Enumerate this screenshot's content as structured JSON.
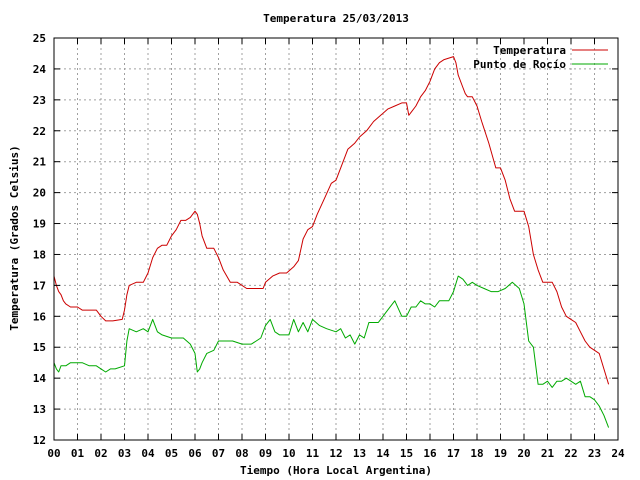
{
  "chart_data": {
    "type": "line",
    "title": "Temperatura 25/03/2013",
    "xlabel": "Tiempo (Hora Local Argentina)",
    "ylabel": "Temperatura (Grados Celsius)",
    "xlim": [
      0,
      24
    ],
    "ylim": [
      12,
      25
    ],
    "x_ticks": [
      "00",
      "01",
      "02",
      "03",
      "04",
      "05",
      "06",
      "07",
      "08",
      "09",
      "10",
      "11",
      "12",
      "13",
      "14",
      "15",
      "16",
      "17",
      "18",
      "19",
      "20",
      "21",
      "22",
      "23",
      "24"
    ],
    "y_ticks": [
      "12",
      "13",
      "14",
      "15",
      "16",
      "17",
      "18",
      "19",
      "20",
      "21",
      "22",
      "23",
      "24",
      "25"
    ],
    "grid": true,
    "legend_position": "top-right",
    "series": [
      {
        "name": "Temperatura",
        "color": "#cc0000",
        "x": [
          0,
          0.1,
          0.2,
          0.3,
          0.4,
          0.5,
          0.7,
          1.0,
          1.2,
          1.5,
          1.8,
          2.0,
          2.2,
          2.5,
          2.9,
          3.0,
          3.1,
          3.2,
          3.5,
          3.8,
          4.0,
          4.2,
          4.4,
          4.6,
          4.8,
          5.0,
          5.2,
          5.4,
          5.6,
          5.8,
          6.0,
          6.1,
          6.2,
          6.3,
          6.5,
          6.8,
          7.0,
          7.2,
          7.5,
          7.8,
          8.2,
          8.5,
          8.9,
          9.0,
          9.3,
          9.6,
          9.9,
          10.2,
          10.4,
          10.6,
          10.8,
          11.0,
          11.2,
          11.5,
          11.8,
          12.0,
          12.2,
          12.5,
          12.8,
          13.0,
          13.3,
          13.6,
          13.9,
          14.2,
          14.5,
          14.8,
          15.0,
          15.1,
          15.2,
          15.4,
          15.6,
          15.8,
          16.0,
          16.2,
          16.4,
          16.6,
          16.8,
          17.0,
          17.1,
          17.2,
          17.4,
          17.5,
          17.6,
          17.8,
          18.0,
          18.2,
          18.5,
          18.8,
          19.0,
          19.2,
          19.4,
          19.6,
          19.8,
          20.0,
          20.2,
          20.4,
          20.6,
          20.8,
          21.0,
          21.2,
          21.4,
          21.6,
          21.8,
          22.0,
          22.2,
          22.4,
          22.6,
          22.8,
          23.0,
          23.2,
          23.4,
          23.6
        ],
        "values": [
          17.3,
          17.0,
          16.8,
          16.7,
          16.5,
          16.4,
          16.3,
          16.3,
          16.2,
          16.2,
          16.2,
          16.0,
          15.85,
          15.85,
          15.9,
          16.2,
          16.7,
          17.0,
          17.1,
          17.1,
          17.4,
          17.9,
          18.2,
          18.3,
          18.3,
          18.6,
          18.8,
          19.1,
          19.1,
          19.2,
          19.4,
          19.3,
          19.0,
          18.6,
          18.2,
          18.2,
          17.9,
          17.5,
          17.1,
          17.1,
          16.9,
          16.9,
          16.9,
          17.1,
          17.3,
          17.4,
          17.4,
          17.6,
          17.8,
          18.5,
          18.8,
          18.9,
          19.3,
          19.8,
          20.3,
          20.4,
          20.8,
          21.4,
          21.6,
          21.8,
          22.0,
          22.3,
          22.5,
          22.7,
          22.8,
          22.9,
          22.9,
          22.5,
          22.6,
          22.8,
          23.1,
          23.3,
          23.6,
          24.0,
          24.2,
          24.3,
          24.35,
          24.4,
          24.2,
          23.8,
          23.4,
          23.2,
          23.1,
          23.1,
          22.8,
          22.3,
          21.6,
          20.8,
          20.8,
          20.4,
          19.8,
          19.4,
          19.4,
          19.4,
          18.9,
          18.0,
          17.5,
          17.1,
          17.1,
          17.1,
          16.8,
          16.3,
          16.0,
          15.9,
          15.8,
          15.5,
          15.2,
          15.0,
          14.9,
          14.8,
          14.3,
          13.8
        ]
      },
      {
        "name": "Punto de Rocío",
        "color": "#00aa00",
        "x": [
          0,
          0.1,
          0.2,
          0.3,
          0.5,
          0.7,
          1.0,
          1.2,
          1.5,
          1.8,
          2.0,
          2.2,
          2.4,
          2.6,
          3.0,
          3.1,
          3.2,
          3.5,
          3.8,
          4.0,
          4.2,
          4.4,
          4.6,
          5.0,
          5.2,
          5.5,
          5.8,
          6.0,
          6.1,
          6.2,
          6.3,
          6.5,
          6.8,
          7.0,
          7.3,
          7.6,
          8.0,
          8.4,
          8.8,
          9.0,
          9.2,
          9.4,
          9.6,
          9.8,
          10.0,
          10.2,
          10.4,
          10.6,
          10.8,
          11.0,
          11.3,
          11.6,
          12.0,
          12.2,
          12.4,
          12.6,
          12.8,
          13.0,
          13.2,
          13.4,
          13.6,
          13.8,
          14.0,
          14.2,
          14.5,
          14.8,
          15.0,
          15.2,
          15.4,
          15.6,
          15.8,
          16.0,
          16.2,
          16.4,
          16.6,
          16.8,
          17.0,
          17.2,
          17.4,
          17.6,
          17.8,
          18.0,
          18.3,
          18.6,
          18.9,
          19.2,
          19.5,
          19.8,
          20.0,
          20.2,
          20.4,
          20.6,
          20.8,
          21.0,
          21.2,
          21.4,
          21.6,
          21.8,
          22.0,
          22.2,
          22.4,
          22.6,
          22.8,
          23.0,
          23.2,
          23.4,
          23.6
        ],
        "values": [
          14.5,
          14.3,
          14.2,
          14.4,
          14.4,
          14.5,
          14.5,
          14.5,
          14.4,
          14.4,
          14.3,
          14.2,
          14.3,
          14.3,
          14.4,
          15.2,
          15.6,
          15.5,
          15.6,
          15.5,
          15.9,
          15.5,
          15.4,
          15.3,
          15.3,
          15.3,
          15.1,
          14.8,
          14.2,
          14.3,
          14.5,
          14.8,
          14.9,
          15.2,
          15.2,
          15.2,
          15.1,
          15.1,
          15.3,
          15.7,
          15.9,
          15.5,
          15.4,
          15.4,
          15.4,
          15.9,
          15.5,
          15.8,
          15.5,
          15.9,
          15.7,
          15.6,
          15.5,
          15.6,
          15.3,
          15.4,
          15.1,
          15.4,
          15.3,
          15.8,
          15.8,
          15.8,
          16.0,
          16.2,
          16.5,
          16.0,
          16.0,
          16.3,
          16.3,
          16.5,
          16.4,
          16.4,
          16.3,
          16.5,
          16.5,
          16.5,
          16.8,
          17.3,
          17.2,
          17.0,
          17.1,
          17.0,
          16.9,
          16.8,
          16.8,
          16.9,
          17.1,
          16.9,
          16.4,
          15.2,
          15.0,
          13.8,
          13.8,
          13.9,
          13.7,
          13.9,
          13.9,
          14.0,
          13.9,
          13.8,
          13.9,
          13.4,
          13.4,
          13.3,
          13.1,
          12.8,
          12.4
        ]
      }
    ]
  }
}
